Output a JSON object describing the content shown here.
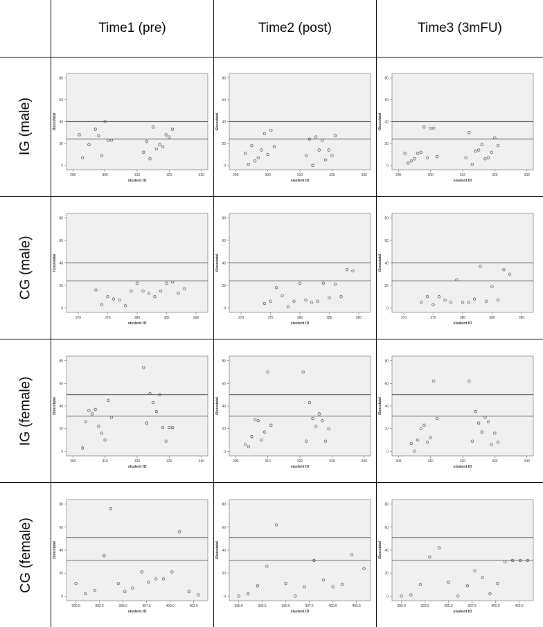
{
  "columns": [
    "Time1 (pre)",
    "Time2 (post)",
    "Time3 (3mFU)"
  ],
  "rows": [
    "IG (male)",
    "CG (male)",
    "IG (female)",
    "CG (female)"
  ],
  "chart_data": [
    {
      "type": "scatter",
      "group": "IG (male)",
      "time": "Time1 (pre)",
      "xlabel": "student ID",
      "ylabel": "t1sozstatal",
      "xlim": [
        288,
        332
      ],
      "ylim": [
        -4,
        84
      ],
      "xticks": [
        290,
        300,
        310,
        320,
        330
      ],
      "yticks": [
        0,
        20,
        40,
        60,
        80
      ],
      "hlines": [
        40,
        24
      ],
      "x": [
        292,
        293,
        295,
        297,
        298,
        299,
        300,
        301,
        302,
        312,
        313,
        314,
        315,
        316,
        317,
        318,
        319,
        320,
        321
      ],
      "y": [
        28,
        7,
        19,
        33,
        27,
        9,
        40,
        23,
        23,
        12,
        22,
        6,
        35,
        15,
        19,
        17,
        28,
        26,
        33
      ]
    },
    {
      "type": "scatter",
      "group": "IG (male)",
      "time": "Time2 (post)",
      "xlabel": "student ID",
      "ylabel": "t2sozstatal",
      "xlim": [
        288,
        332
      ],
      "ylim": [
        -4,
        84
      ],
      "xticks": [
        290,
        300,
        310,
        320,
        330
      ],
      "yticks": [
        0,
        20,
        40,
        60,
        80
      ],
      "hlines": [
        40,
        24
      ],
      "x": [
        293,
        294,
        295,
        296,
        297,
        298,
        299,
        300,
        301,
        302,
        312,
        313,
        314,
        315,
        316,
        317,
        318,
        319,
        320
      ],
      "y": [
        11,
        1,
        18,
        4,
        7,
        14,
        29,
        10,
        32,
        17,
        9,
        24,
        0,
        26,
        14,
        23,
        5,
        14,
        9
      ],
      "extra_points": [
        [
          321,
          27
        ]
      ]
    },
    {
      "type": "scatter",
      "group": "IG (male)",
      "time": "Time3 (3mFU)",
      "xlabel": "student ID",
      "ylabel": "t3sozstatal",
      "xlim": [
        288,
        332
      ],
      "ylim": [
        -4,
        84
      ],
      "xticks": [
        290,
        300,
        310,
        320,
        330
      ],
      "yticks": [
        0,
        20,
        40,
        60,
        80
      ],
      "hlines": [
        40,
        24
      ],
      "x": [
        292,
        293,
        294,
        295,
        296,
        297,
        298,
        299,
        300,
        301,
        302,
        311,
        312,
        313,
        314,
        315,
        316,
        317,
        318,
        319,
        320,
        321
      ],
      "y": [
        11,
        2,
        4,
        6,
        11,
        12,
        35,
        7,
        34,
        34,
        8,
        7,
        30,
        1,
        13,
        14,
        19,
        6,
        7,
        12,
        25,
        18
      ]
    },
    {
      "type": "scatter",
      "group": "CG (male)",
      "time": "Time1 (pre)",
      "xlabel": "student ID",
      "ylabel": "t1sozstatal",
      "xlim": [
        368,
        392
      ],
      "ylim": [
        -4,
        84
      ],
      "xticks": [
        370,
        375,
        380,
        385,
        390
      ],
      "yticks": [
        0,
        20,
        40,
        60,
        80
      ],
      "hlines": [
        40,
        24
      ],
      "x": [
        373,
        374,
        375,
        376,
        377,
        378,
        379,
        380,
        381,
        382,
        383,
        384,
        385,
        386,
        387,
        388
      ],
      "y": [
        16,
        3,
        10,
        8,
        7,
        2,
        15,
        22,
        15,
        13,
        10,
        15,
        22,
        23,
        13,
        17
      ]
    },
    {
      "type": "scatter",
      "group": "CG (male)",
      "time": "Time2 (post)",
      "xlabel": "student ID",
      "ylabel": "t2sozstatal",
      "xlim": [
        368,
        392
      ],
      "ylim": [
        -4,
        84
      ],
      "xticks": [
        370,
        375,
        380,
        385,
        390
      ],
      "yticks": [
        0,
        20,
        40,
        60,
        80
      ],
      "hlines": [
        40,
        24
      ],
      "x": [
        374,
        375,
        376,
        377,
        378,
        379,
        380,
        381,
        382,
        383,
        384,
        385,
        386,
        387,
        388,
        389
      ],
      "y": [
        4,
        6,
        18,
        11,
        1,
        6,
        22,
        7,
        5,
        6,
        22,
        9,
        21,
        10,
        34,
        33
      ]
    },
    {
      "type": "scatter",
      "group": "CG (male)",
      "time": "Time3 (3mFU)",
      "xlabel": "student ID",
      "ylabel": "t3sozstatal",
      "xlim": [
        368,
        392
      ],
      "ylim": [
        -4,
        84
      ],
      "xticks": [
        370,
        375,
        380,
        385,
        390
      ],
      "yticks": [
        0,
        20,
        40,
        60,
        80
      ],
      "hlines": [
        40,
        24
      ],
      "x": [
        373,
        374,
        375,
        376,
        377,
        378,
        379,
        380,
        381,
        382,
        383,
        384,
        385,
        386,
        387,
        388
      ],
      "y": [
        5,
        10,
        3,
        10,
        7,
        5,
        25,
        5,
        5,
        8,
        37,
        6,
        19,
        7,
        34,
        30
      ]
    },
    {
      "type": "scatter",
      "group": "IG (female)",
      "time": "Time1 (pre)",
      "xlabel": "student ID",
      "ylabel": "t1sozstatal",
      "xlim": [
        298,
        342
      ],
      "ylim": [
        -4,
        84
      ],
      "xticks": [
        300,
        310,
        320,
        330,
        340
      ],
      "yticks": [
        0,
        20,
        40,
        60,
        80
      ],
      "hlines": [
        50,
        31
      ],
      "x": [
        303,
        304,
        305,
        306,
        307,
        308,
        309,
        310,
        311,
        312,
        322,
        323,
        324,
        325,
        326,
        327,
        328,
        329,
        330,
        331
      ],
      "y": [
        3,
        26,
        36,
        33,
        37,
        22,
        16,
        10,
        45,
        30,
        74,
        25,
        51,
        43,
        35,
        50,
        21,
        9,
        21,
        21
      ]
    },
    {
      "type": "scatter",
      "group": "IG (female)",
      "time": "Time2 (post)",
      "xlabel": "student ID",
      "ylabel": "t2sozstatal",
      "xlim": [
        298,
        342
      ],
      "ylim": [
        -4,
        84
      ],
      "xticks": [
        300,
        310,
        320,
        330,
        340
      ],
      "yticks": [
        0,
        20,
        40,
        60,
        80
      ],
      "hlines": [
        50,
        31
      ],
      "x": [
        303,
        304,
        305,
        306,
        307,
        308,
        309,
        310,
        311,
        321,
        322,
        323,
        324,
        325,
        326,
        327,
        328,
        329
      ],
      "y": [
        6,
        4,
        13,
        28,
        27,
        10,
        17,
        70,
        23,
        70,
        9,
        43,
        29,
        22,
        33,
        27,
        9,
        20
      ]
    },
    {
      "type": "scatter",
      "group": "IG (female)",
      "time": "Time3 (3mFU)",
      "xlabel": "student ID",
      "ylabel": "t3sozstatal",
      "xlim": [
        298,
        342
      ],
      "ylim": [
        -4,
        84
      ],
      "xticks": [
        300,
        310,
        320,
        330,
        340
      ],
      "yticks": [
        0,
        20,
        40,
        60,
        80
      ],
      "hlines": [
        50,
        31
      ],
      "x": [
        304,
        305,
        306,
        307,
        308,
        309,
        310,
        311,
        312,
        322,
        323,
        324,
        325,
        326,
        327,
        328,
        329,
        330,
        331
      ],
      "y": [
        7,
        0,
        10,
        20,
        23,
        8,
        12,
        62,
        29,
        62,
        9,
        35,
        25,
        17,
        30,
        26,
        6,
        16,
        8
      ]
    },
    {
      "type": "scatter",
      "group": "CG (female)",
      "time": "Time1 (pre)",
      "xlabel": "student ID",
      "ylabel": "t1sozstatal",
      "xlim": [
        389,
        404
      ],
      "ylim": [
        -4,
        84
      ],
      "xticks": [
        390,
        392.5,
        395,
        397.5,
        400,
        402.5
      ],
      "xtick_labels": [
        "390.0",
        "392.5",
        "395.0",
        "397.5",
        "400.0",
        "402.5"
      ],
      "yticks": [
        0,
        20,
        40,
        60,
        80
      ],
      "hlines": [
        51,
        31
      ],
      "x": [
        390,
        391,
        392,
        393,
        393.7,
        394.5,
        395.2,
        396,
        397,
        397.7,
        398.5,
        399.3,
        400.2,
        401,
        402,
        403
      ],
      "y": [
        11,
        2,
        5,
        35,
        76,
        11,
        4,
        7,
        21,
        12,
        15,
        15,
        21,
        56,
        4,
        1
      ]
    },
    {
      "type": "scatter",
      "group": "CG (female)",
      "time": "Time2 (post)",
      "xlabel": "student ID",
      "ylabel": "t2sozstatal",
      "xlim": [
        389,
        404
      ],
      "ylim": [
        -4,
        84
      ],
      "xticks": [
        390,
        392.5,
        395,
        397.5,
        400,
        402.5
      ],
      "xtick_labels": [
        "390.0",
        "392.5",
        "395.0",
        "397.5",
        "400.0",
        "402.5"
      ],
      "yticks": [
        0,
        20,
        40,
        60,
        80
      ],
      "hlines": [
        51,
        31
      ],
      "x": [
        390,
        391,
        392,
        393,
        394,
        395,
        396,
        397,
        398,
        399,
        400,
        401,
        402,
        403.3
      ],
      "y": [
        0,
        2,
        9,
        26,
        62,
        11,
        0,
        8,
        31,
        14,
        8,
        10,
        36,
        24
      ]
    },
    {
      "type": "scatter",
      "group": "CG (female)",
      "time": "Time3 (3mFU)",
      "xlabel": "student ID",
      "ylabel": "t3sozstatal",
      "xlim": [
        389,
        404
      ],
      "ylim": [
        -4,
        84
      ],
      "xticks": [
        390,
        392.5,
        395,
        397.5,
        400,
        402.5
      ],
      "xtick_labels": [
        "390.0",
        "392.5",
        "395.0",
        "397.5",
        "400.0",
        "402.5"
      ],
      "yticks": [
        0,
        20,
        40,
        60,
        80
      ],
      "hlines": [
        51,
        31
      ],
      "x": [
        390,
        391,
        392,
        393,
        394,
        395,
        396,
        397,
        397.8,
        398.6,
        399.4,
        400.2,
        401,
        401.8,
        402.6,
        403.4
      ],
      "y": [
        0,
        1,
        10,
        34,
        42,
        12,
        0,
        9,
        22,
        16,
        2,
        11,
        30,
        31,
        31,
        31
      ]
    }
  ]
}
